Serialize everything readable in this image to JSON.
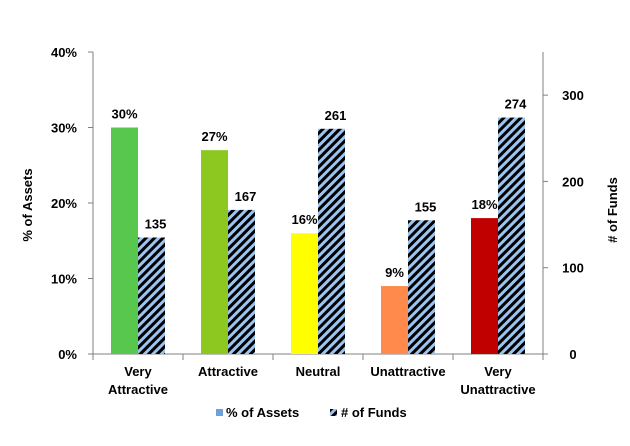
{
  "chart_data": {
    "type": "bar",
    "categories": [
      "Very\nAttractive",
      "Attractive",
      "Neutral",
      "Unattractive",
      "Very\nUnattractive"
    ],
    "series": [
      {
        "name": "% of Assets",
        "axis": "left",
        "values": [
          30,
          27,
          16,
          9,
          18
        ],
        "value_labels": [
          "30%",
          "27%",
          "16%",
          "9%",
          "18%"
        ],
        "colors": [
          "#57c84d",
          "#8cc820",
          "#ffff00",
          "#ff8a4c",
          "#c00000"
        ]
      },
      {
        "name": "# of Funds",
        "axis": "right",
        "values": [
          135,
          167,
          261,
          155,
          274
        ],
        "value_labels": [
          "135",
          "167",
          "261",
          "155",
          "274"
        ],
        "pattern": "diagonal-stripes",
        "colors": [
          "#000000",
          "#9cc4f0"
        ]
      }
    ],
    "ylabel": "% of Assets",
    "y2label": "# of Funds",
    "ylim": [
      0,
      40
    ],
    "y2lim": [
      0,
      350
    ],
    "yticks": [
      "0%",
      "10%",
      "20%",
      "30%",
      "40%"
    ],
    "y2ticks": [
      "0",
      "100",
      "200",
      "300"
    ],
    "legend": {
      "position": "bottom",
      "items": [
        "% of Assets",
        "# of Funds"
      ]
    },
    "grid": false
  }
}
